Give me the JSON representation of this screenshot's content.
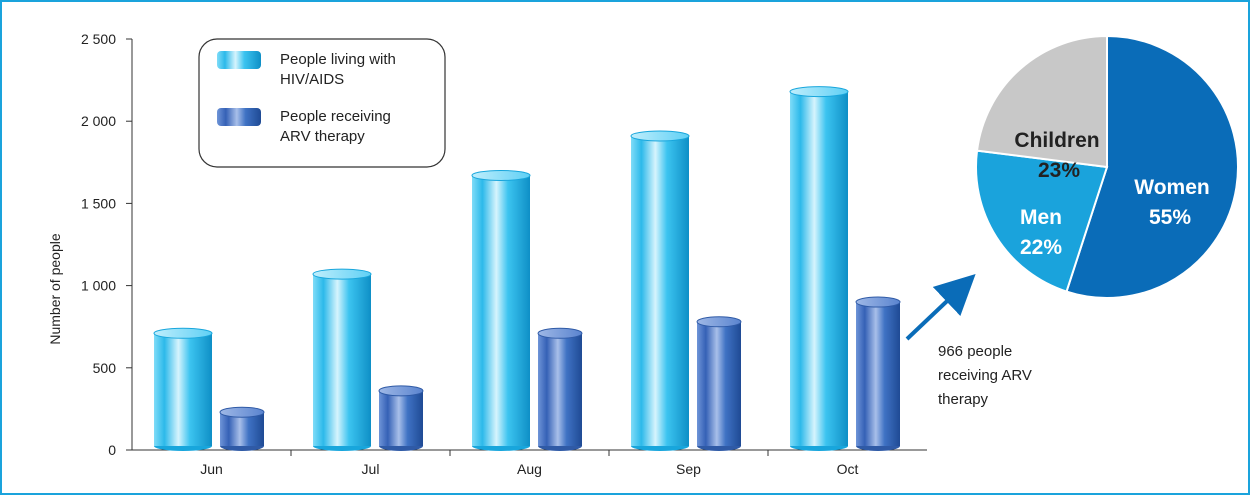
{
  "chart_data": [
    {
      "type": "bar",
      "ylabel": "Number of people",
      "ylim": [
        0,
        2500
      ],
      "yticks": [
        0,
        500,
        1000,
        1500,
        2000,
        2500
      ],
      "ytick_labels": [
        "0",
        "500",
        "1 000",
        "1 500",
        "2 000",
        "2 500"
      ],
      "categories": [
        "Jun",
        "Jul",
        "Aug",
        "Sep",
        "Oct"
      ],
      "series": [
        {
          "name": "People living with HIV/AIDS",
          "values": [
            710,
            1070,
            1670,
            1910,
            2180
          ]
        },
        {
          "name": "People receiving ARV therapy",
          "values": [
            230,
            360,
            710,
            780,
            900
          ]
        }
      ],
      "legend": {
        "placement": "top-left",
        "entries": [
          {
            "lines": [
              "People living with",
              "HIV/AIDS"
            ]
          },
          {
            "lines": [
              "People receiving",
              "ARV therapy"
            ]
          }
        ]
      },
      "annotation": {
        "lines": [
          "966 people",
          "receiving ARV",
          "therapy"
        ]
      },
      "colors": {
        "series1": "#3cc4f0",
        "series2": "#3f72c4"
      },
      "grid": false
    },
    {
      "type": "pie",
      "slices": [
        {
          "label": "Women",
          "percent_label": "55%",
          "value": 55,
          "color": "#0a6cb8"
        },
        {
          "label": "Men",
          "percent_label": "22%",
          "value": 22,
          "color": "#1aa3dc"
        },
        {
          "label": "Children",
          "percent_label": "23%",
          "value": 23,
          "color": "#c8c8c8"
        }
      ]
    }
  ],
  "colors": {
    "frame": "#1aa3dc",
    "arrow": "#0a6cb8"
  }
}
